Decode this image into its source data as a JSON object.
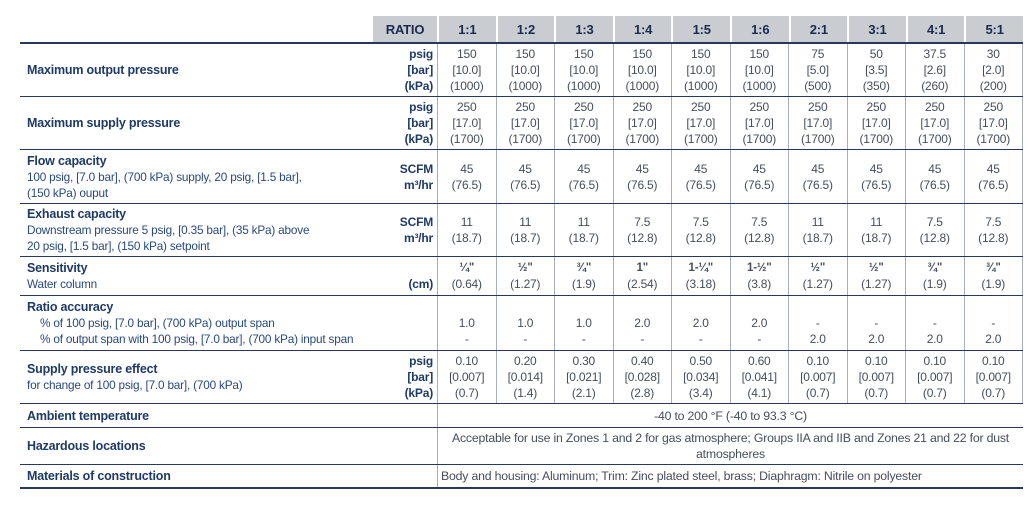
{
  "header": {
    "ratio_label": "RATIO",
    "ratios": [
      "1:1",
      "1:2",
      "1:3",
      "1:4",
      "1:5",
      "1:6",
      "2:1",
      "3:1",
      "4:1",
      "5:1"
    ]
  },
  "rows": [
    {
      "name": "maximum-output-pressure",
      "label": "Maximum output pressure",
      "sublines": [],
      "units": [
        "psig",
        "[bar]",
        "(kPa)"
      ],
      "values": [
        [
          "150",
          "[10.0]",
          "(1000)"
        ],
        [
          "150",
          "[10.0]",
          "(1000)"
        ],
        [
          "150",
          "[10.0]",
          "(1000)"
        ],
        [
          "150",
          "[10.0]",
          "(1000)"
        ],
        [
          "150",
          "[10.0]",
          "(1000)"
        ],
        [
          "150",
          "[10.0]",
          "(1000)"
        ],
        [
          "75",
          "[5.0]",
          "(500)"
        ],
        [
          "50",
          "[3.5]",
          "(350)"
        ],
        [
          "37.5",
          "[2.6]",
          "(260)"
        ],
        [
          "30",
          "[2.0]",
          "(200)"
        ]
      ]
    },
    {
      "name": "maximum-supply-pressure",
      "label": "Maximum supply pressure",
      "sublines": [],
      "units": [
        "psig",
        "[bar]",
        "(kPa)"
      ],
      "values": [
        [
          "250",
          "[17.0]",
          "(1700)"
        ],
        [
          "250",
          "[17.0]",
          "(1700)"
        ],
        [
          "250",
          "[17.0]",
          "(1700)"
        ],
        [
          "250",
          "[17.0]",
          "(1700)"
        ],
        [
          "250",
          "[17.0]",
          "(1700)"
        ],
        [
          "250",
          "[17.0]",
          "(1700)"
        ],
        [
          "250",
          "[17.0]",
          "(1700)"
        ],
        [
          "250",
          "[17.0]",
          "(1700)"
        ],
        [
          "250",
          "[17.0]",
          "(1700)"
        ],
        [
          "250",
          "[17.0]",
          "(1700)"
        ]
      ]
    },
    {
      "name": "flow-capacity",
      "label": "Flow capacity",
      "sublines": [
        "100 psig, [7.0 bar], (700 kPa) supply, 20 psig, [1.5 bar],",
        "(150 kPa) ouput"
      ],
      "units": [
        "SCFM",
        "m³/hr"
      ],
      "values": [
        [
          "45",
          "(76.5)"
        ],
        [
          "45",
          "(76.5)"
        ],
        [
          "45",
          "(76.5)"
        ],
        [
          "45",
          "(76.5)"
        ],
        [
          "45",
          "(76.5)"
        ],
        [
          "45",
          "(76.5)"
        ],
        [
          "45",
          "(76.5)"
        ],
        [
          "45",
          "(76.5)"
        ],
        [
          "45",
          "(76.5)"
        ],
        [
          "45",
          "(76.5)"
        ]
      ]
    },
    {
      "name": "exhaust-capacity",
      "label": "Exhaust capacity",
      "sublines": [
        "Downstream pressure 5 psig, [0.35 bar], (35 kPa) above",
        "20 psig, [1.5 bar], (150 kPa) setpoint"
      ],
      "units": [
        "SCFM",
        "m³/hr"
      ],
      "values": [
        [
          "11",
          "(18.7)"
        ],
        [
          "11",
          "(18.7)"
        ],
        [
          "11",
          "(18.7)"
        ],
        [
          "7.5",
          "(12.8)"
        ],
        [
          "7.5",
          "(12.8)"
        ],
        [
          "7.5",
          "(12.8)"
        ],
        [
          "11",
          "(18.7)"
        ],
        [
          "11",
          "(18.7)"
        ],
        [
          "7.5",
          "(12.8)"
        ],
        [
          "7.5",
          "(12.8)"
        ]
      ]
    },
    {
      "name": "sensitivity",
      "label": "Sensitivity",
      "sublines": [
        "Water column"
      ],
      "units": [
        "",
        "(cm)"
      ],
      "bold_first": true,
      "values": [
        [
          "¼\"",
          "(0.64)"
        ],
        [
          "½\"",
          "(1.27)"
        ],
        [
          "¾\"",
          "(1.9)"
        ],
        [
          "1\"",
          "(2.54)"
        ],
        [
          "1-¼\"",
          "(3.18)"
        ],
        [
          "1-½\"",
          "(3.8)"
        ],
        [
          "½\"",
          "(1.27)"
        ],
        [
          "½\"",
          "(1.27)"
        ],
        [
          "¾\"",
          "(1.9)"
        ],
        [
          "¾\"",
          "(1.9)"
        ]
      ]
    },
    {
      "name": "ratio-accuracy",
      "label": "Ratio accuracy",
      "sublines": [
        "% of 100 psig, [7.0 bar], (700 kPa) output span",
        "% of output span with 100 psig, [7.0 bar], (700 kPa) input span"
      ],
      "sublines_indent": true,
      "units": [],
      "align_bottom": true,
      "values": [
        [
          "1.0",
          "-"
        ],
        [
          "1.0",
          "-"
        ],
        [
          "1.0",
          "-"
        ],
        [
          "2.0",
          "-"
        ],
        [
          "2.0",
          "-"
        ],
        [
          "2.0",
          "-"
        ],
        [
          "-",
          "2.0"
        ],
        [
          "-",
          "2.0"
        ],
        [
          "-",
          "2.0"
        ],
        [
          "-",
          "2.0"
        ]
      ]
    },
    {
      "name": "supply-pressure-effect",
      "label": "Supply pressure effect",
      "sublines": [
        "for change of 100 psig, [7.0 bar], (700 kPa)"
      ],
      "units": [
        "psig",
        "[bar]",
        "(kPa)"
      ],
      "values": [
        [
          "0.10",
          "[0.007]",
          "(0.7)"
        ],
        [
          "0.20",
          "[0.014]",
          "(1.4)"
        ],
        [
          "0.30",
          "[0.021]",
          "(2.1)"
        ],
        [
          "0.40",
          "[0.028]",
          "(2.8)"
        ],
        [
          "0.50",
          "[0.034]",
          "(3.4)"
        ],
        [
          "0.60",
          "[0.041]",
          "(4.1)"
        ],
        [
          "0.10",
          "[0.007]",
          "(0.7)"
        ],
        [
          "0.10",
          "[0.007]",
          "(0.7)"
        ],
        [
          "0.10",
          "[0.007]",
          "(0.7)"
        ],
        [
          "0.10",
          "[0.007]",
          "(0.7)"
        ]
      ]
    }
  ],
  "full_rows": [
    {
      "name": "ambient-temperature",
      "label": "Ambient temperature",
      "value": "-40 to 200 °F (-40 to 93.3 °C)",
      "align": "center"
    },
    {
      "name": "hazardous-locations",
      "label": "Hazardous locations",
      "value": "Acceptable for use in Zones 1 and 2 for gas atmosphere; Groups IIA and IIB and Zones 21 and 22 for dust atmospheres",
      "align": "center"
    },
    {
      "name": "materials-of-construction",
      "label": "Materials of construction",
      "value": "Body and housing: Aluminum; Trim: Zinc plated steel, brass; Diaphragm: Nitrile on polyester",
      "align": "left"
    }
  ]
}
